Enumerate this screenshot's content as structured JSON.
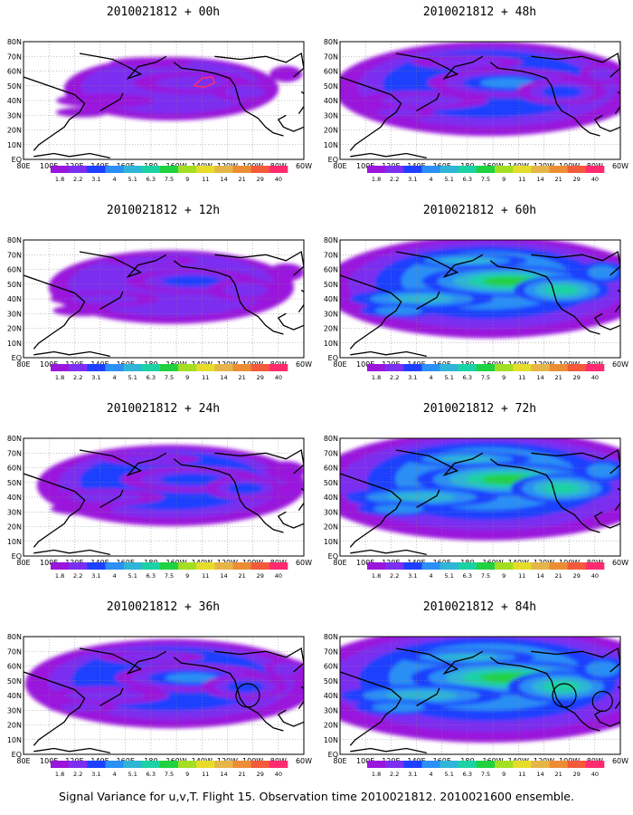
{
  "colors": {
    "land": "#000000",
    "grid": "#888888",
    "contour": "#000000",
    "palette": [
      "#9a16dc",
      "#7c2ff0",
      "#1f3ffe",
      "#2b8ff5",
      "#2fb5d6",
      "#1cd2a4",
      "#20d140",
      "#a3de23",
      "#e6dd2b",
      "#e6b548",
      "#ec8d35",
      "#f25a3a",
      "#ff2b6e"
    ]
  },
  "colorbar_labels": [
    "1.8",
    "2.2",
    "3.1",
    "4",
    "5.1",
    "6.3",
    "7.5",
    "9",
    "11",
    "14",
    "21",
    "29",
    "40"
  ],
  "lat_labels": [
    "80N",
    "70N",
    "60N",
    "50N",
    "40N",
    "30N",
    "20N",
    "10N",
    "EQ"
  ],
  "lon_labels": [
    "80E",
    "100E",
    "120E",
    "140E",
    "160E",
    "180",
    "160W",
    "140W",
    "120W",
    "100W",
    "80W",
    "60W"
  ],
  "panels": [
    {
      "title": "2010021812 + 00h",
      "level": 0.15
    },
    {
      "title": "2010021812 + 48h",
      "level": 0.55
    },
    {
      "title": "2010021812 + 12h",
      "level": 0.28
    },
    {
      "title": "2010021812 + 60h",
      "level": 0.65
    },
    {
      "title": "2010021812 + 24h",
      "level": 0.38
    },
    {
      "title": "2010021812 + 72h",
      "level": 0.75
    },
    {
      "title": "2010021812 + 36h",
      "level": 0.48
    },
    {
      "title": "2010021812 + 84h",
      "level": 0.85
    }
  ],
  "footer": "Signal Variance for u,v,T. Flight 15. Observation time 2010021812. 2010021600 ensemble."
}
